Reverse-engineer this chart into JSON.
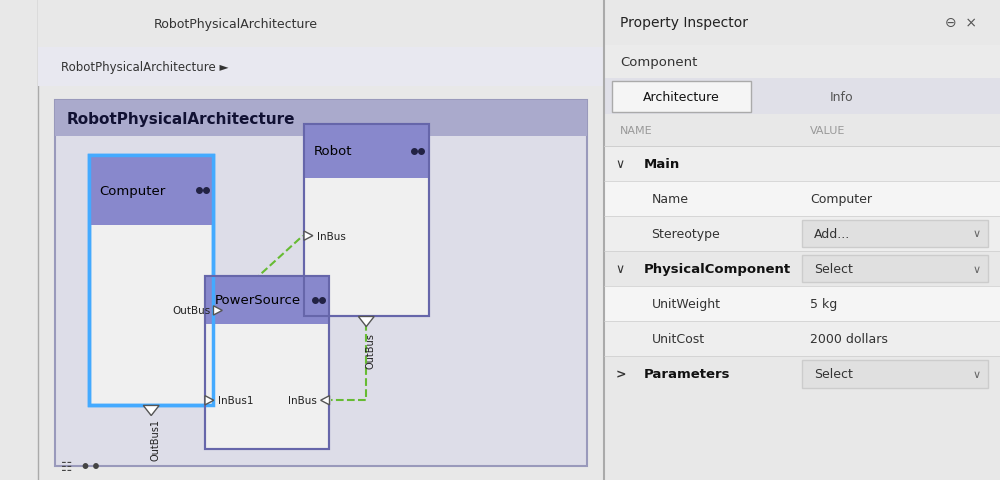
{
  "fig_width": 10.0,
  "fig_height": 4.81,
  "dpi": 100,
  "toolbar_bg": "#e8e8e8",
  "toolbar_title": "RobotPhysicalArchitecture",
  "breadcrumb_text": "RobotPhysicalArchitecture ►",
  "diagram_bg": "#c8c8d8",
  "diagram_title": "RobotPhysicalArchitecture",
  "node_header_bg": "#8888cc",
  "node_body_bg": "#f0f0f0",
  "node_border_color": "#6666aa",
  "node_selected_border": "#44aaff",
  "computer_label": "Computer",
  "robot_label": "Robot",
  "powersource_label": "PowerSource",
  "conn_color": "#66bb33",
  "right_panel_bg": "#f5f5f5",
  "prop_title": "Property Inspector",
  "prop_subtitle": "Component",
  "tab1": "Architecture",
  "tab2": "Info",
  "col_name": "NAME",
  "col_value": "VALUE",
  "section_main": "Main",
  "row_name": "Name",
  "row_name_val": "Computer",
  "row_stereo": "Stereotype",
  "row_stereo_val": "Add...",
  "section_phys": "PhysicalComponent",
  "section_phys_val": "Select",
  "row_weight": "UnitWeight",
  "row_weight_val": "5 kg",
  "row_cost": "UnitCost",
  "row_cost_val": "2000 dollars",
  "section_params": "Parameters",
  "section_params_val": "Select",
  "left_sidebar_bg": "#d0d0d8"
}
